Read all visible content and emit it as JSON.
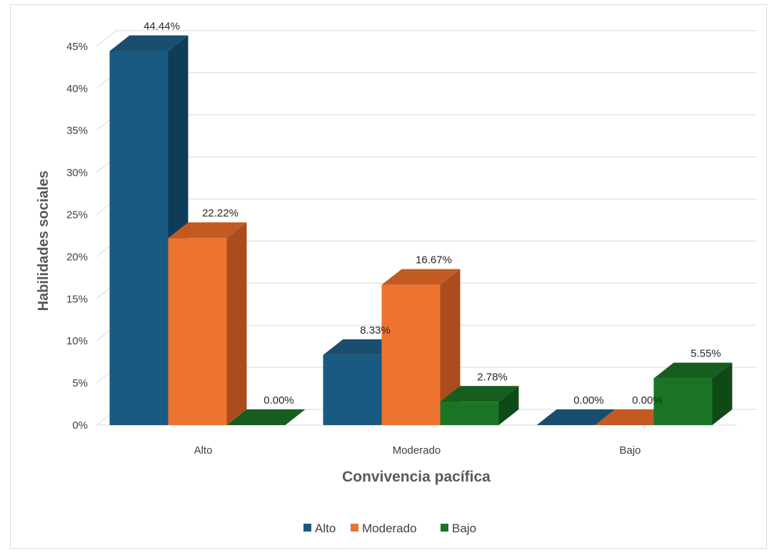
{
  "chart_data": {
    "type": "bar",
    "style": "3d-clustered-column",
    "categories": [
      "Alto",
      "Moderado",
      "Bajo"
    ],
    "series": [
      {
        "name": "Alto",
        "values": [
          44.44,
          8.33,
          0.0
        ],
        "labels": [
          "44.44%",
          "8.33%",
          "0.00%"
        ],
        "color": "#195a82",
        "side_color": "#0f3c57",
        "top_color": "#1a4e6e"
      },
      {
        "name": "Moderado",
        "values": [
          22.22,
          16.67,
          0.0
        ],
        "labels": [
          "22.22%",
          "16.67%",
          "0.00%"
        ],
        "color": "#ed7331",
        "side_color": "#a94d1e",
        "top_color": "#c35a22"
      },
      {
        "name": "Bajo",
        "values": [
          0.0,
          2.78,
          5.55
        ],
        "labels": [
          "0.00%",
          "2.78%",
          "5.55%"
        ],
        "color": "#1b7426",
        "side_color": "#0f4a16",
        "top_color": "#155e1e"
      }
    ],
    "xlabel": "Convivencia pacífica",
    "ylabel": "Habilidades sociales",
    "ylim": [
      0,
      45
    ],
    "yticks": [
      0,
      5,
      10,
      15,
      20,
      25,
      30,
      35,
      40,
      45
    ],
    "ytick_labels": [
      "0%",
      "5%",
      "10%",
      "15%",
      "20%",
      "25%",
      "30%",
      "35%",
      "40%",
      "45%"
    ],
    "grid": true,
    "legend_position": "bottom",
    "colors": {
      "grid": "#d9d9d9",
      "text": "#404040"
    }
  }
}
